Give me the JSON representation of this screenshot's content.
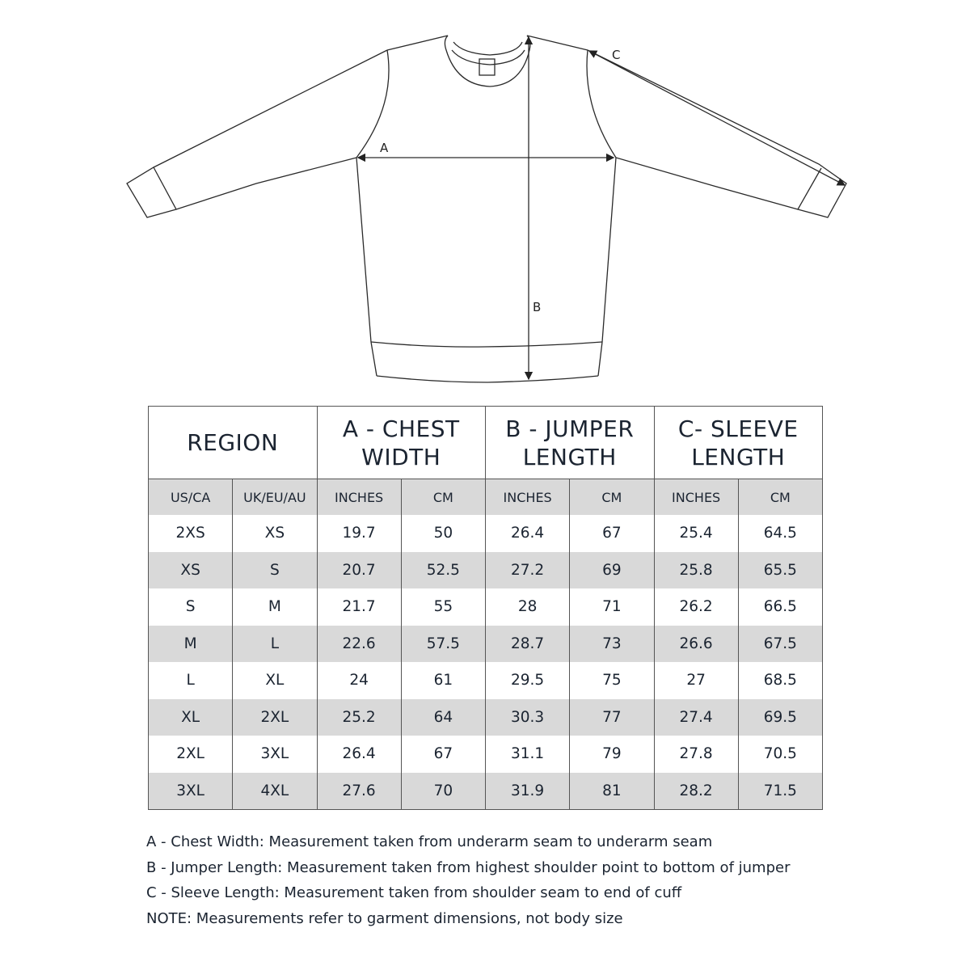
{
  "diagram": {
    "labels": {
      "a": "A",
      "b": "B",
      "c": "C"
    }
  },
  "table": {
    "headers": [
      "REGION",
      "A - CHEST WIDTH",
      "B - JUMPER LENGTH",
      "C- SLEEVE LENGTH"
    ],
    "subheaders": [
      "US/CA",
      "UK/EU/AU",
      "INCHES",
      "CM",
      "INCHES",
      "CM",
      "INCHES",
      "CM"
    ],
    "rows": [
      [
        "2XS",
        "XS",
        "19.7",
        "50",
        "26.4",
        "67",
        "25.4",
        "64.5"
      ],
      [
        "XS",
        "S",
        "20.7",
        "52.5",
        "27.2",
        "69",
        "25.8",
        "65.5"
      ],
      [
        "S",
        "M",
        "21.7",
        "55",
        "28",
        "71",
        "26.2",
        "66.5"
      ],
      [
        "M",
        "L",
        "22.6",
        "57.5",
        "28.7",
        "73",
        "26.6",
        "67.5"
      ],
      [
        "L",
        "XL",
        "24",
        "61",
        "29.5",
        "75",
        "27",
        "68.5"
      ],
      [
        "XL",
        "2XL",
        "25.2",
        "64",
        "30.3",
        "77",
        "27.4",
        "69.5"
      ],
      [
        "2XL",
        "3XL",
        "26.4",
        "67",
        "31.1",
        "79",
        "27.8",
        "70.5"
      ],
      [
        "3XL",
        "4XL",
        "27.6",
        "70",
        "31.9",
        "81",
        "28.2",
        "71.5"
      ]
    ]
  },
  "notes": [
    "A - Chest Width: Measurement taken from underarm seam to underarm seam",
    "B - Jumper Length: Measurement taken from highest shoulder point to bottom of jumper",
    "C - Sleeve Length: Measurement taken from shoulder seam to end of cuff",
    "NOTE: Measurements refer to garment dimensions, not body size"
  ],
  "colors": {
    "text": "#1b2431",
    "row_shade": "#d9d9d9"
  }
}
